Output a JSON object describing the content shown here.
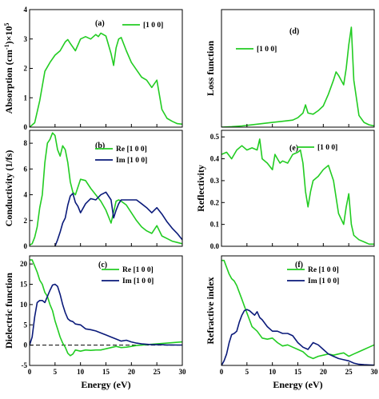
{
  "colors": {
    "green": "#22cc22",
    "navy": "#0a1a7a",
    "axis": "#000000"
  },
  "chart_data": [
    {
      "id": "a",
      "type": "line",
      "panel_label": "(a)",
      "ylabel_parts": [
        "Absorption (cm",
        "-1",
        ")×10",
        "5"
      ],
      "xlabel": "",
      "xlim": [
        0,
        30
      ],
      "ylim": [
        0,
        4
      ],
      "xticks": [
        0,
        5,
        10,
        15,
        20,
        25,
        30
      ],
      "xtick_labels": [],
      "yticks": [
        0,
        1,
        2,
        3,
        4
      ],
      "ytick_labels": [
        "0",
        "1",
        "2",
        "3",
        "4"
      ],
      "legend_placement": "top-right",
      "reference_line": null,
      "series": [
        {
          "name": "[1 0 0]",
          "color": "green",
          "x": [
            0,
            1,
            2,
            3,
            4,
            5,
            6,
            7,
            7.5,
            8,
            9,
            10,
            11,
            12,
            13,
            13.5,
            14,
            15,
            16,
            16.5,
            17,
            17.5,
            18,
            19,
            20,
            21,
            22,
            23,
            24,
            25,
            26,
            27,
            28,
            29,
            30
          ],
          "y": [
            0,
            0.15,
            0.9,
            1.9,
            2.2,
            2.45,
            2.6,
            2.9,
            2.98,
            2.85,
            2.6,
            3.0,
            3.08,
            3.0,
            3.15,
            3.08,
            3.2,
            3.1,
            2.5,
            2.1,
            2.7,
            3.0,
            3.05,
            2.6,
            2.2,
            1.95,
            1.7,
            1.6,
            1.35,
            1.6,
            0.6,
            0.3,
            0.2,
            0.12,
            0.1
          ]
        }
      ]
    },
    {
      "id": "b",
      "type": "line",
      "panel_label": "(b)",
      "ylabel_parts": [
        "Conductivity (1/fs)"
      ],
      "xlabel": "",
      "xlim": [
        0,
        30
      ],
      "ylim": [
        0,
        9
      ],
      "xticks": [
        0,
        5,
        10,
        15,
        20,
        25,
        30
      ],
      "xtick_labels": [],
      "yticks": [
        0,
        2,
        4,
        6,
        8
      ],
      "ytick_labels": [
        "0",
        "2",
        "4",
        "6",
        "8"
      ],
      "legend_placement": "top-right",
      "reference_line": null,
      "series": [
        {
          "name": "Re [1 0 0]",
          "color": "green",
          "x": [
            0,
            0.5,
            1,
            1.5,
            2,
            2.5,
            3,
            3.5,
            4,
            4.5,
            5,
            5.5,
            6,
            6.5,
            7,
            7.5,
            8,
            8.5,
            9,
            10,
            11,
            12,
            13,
            14,
            15,
            16,
            17,
            17.5,
            18,
            19,
            20,
            21,
            22,
            23,
            24,
            25,
            26,
            27,
            28,
            29,
            30
          ],
          "y": [
            0.1,
            0.2,
            0.7,
            1.5,
            3.0,
            4.0,
            6.5,
            8.0,
            8.3,
            8.8,
            8.6,
            7.5,
            7.0,
            7.8,
            7.5,
            6.5,
            5.0,
            4.2,
            4.0,
            5.2,
            5.1,
            4.5,
            4.0,
            3.5,
            2.8,
            1.8,
            3.5,
            3.6,
            3.5,
            3.2,
            2.6,
            2.0,
            1.5,
            1.2,
            1.0,
            1.6,
            0.8,
            0.6,
            0.4,
            0.3,
            0.2
          ]
        },
        {
          "name": "Im [1 0 0]",
          "color": "navy",
          "x": [
            5,
            5.5,
            6,
            6.5,
            7,
            7.5,
            8,
            8.5,
            9,
            9.5,
            10,
            11,
            12,
            13,
            14,
            15,
            16,
            16.5,
            17,
            17.5,
            18,
            19,
            20,
            21,
            22,
            23,
            24,
            25,
            26,
            27,
            28,
            29,
            30
          ],
          "y": [
            0,
            0.5,
            1.1,
            1.8,
            2.2,
            3.2,
            3.9,
            4.1,
            3.4,
            3.1,
            2.6,
            3.3,
            3.7,
            3.6,
            4.0,
            4.2,
            3.6,
            2.2,
            2.8,
            3.3,
            3.6,
            3.6,
            3.6,
            3.6,
            3.3,
            3.0,
            2.6,
            3.0,
            2.5,
            1.9,
            1.4,
            1.0,
            0.5
          ]
        }
      ]
    },
    {
      "id": "c",
      "type": "line",
      "panel_label": "(c)",
      "ylabel_parts": [
        "Dielectric function"
      ],
      "xlabel": "Energy (eV)",
      "xlim": [
        0,
        30
      ],
      "ylim": [
        -5,
        22
      ],
      "xticks": [
        0,
        5,
        10,
        15,
        20,
        25,
        30
      ],
      "xtick_labels": [
        "0",
        "5",
        "10",
        "15",
        "20",
        "25",
        "30"
      ],
      "yticks": [
        -5,
        0,
        5,
        10,
        15,
        20
      ],
      "ytick_labels": [
        "-5",
        "0",
        "5",
        "10",
        "15",
        "20"
      ],
      "legend_placement": "top-right",
      "reference_line": 0,
      "series": [
        {
          "name": "Re [1 0 0]",
          "color": "green",
          "x": [
            0,
            0.5,
            1,
            1.5,
            2,
            2.5,
            3,
            3.5,
            4,
            4.5,
            5,
            5.5,
            6,
            6.5,
            7,
            7.5,
            8,
            8.5,
            9,
            10,
            11,
            12,
            13,
            14,
            15,
            16,
            17,
            18,
            19,
            20,
            21,
            22,
            23,
            24,
            25,
            26,
            27,
            28,
            29,
            30
          ],
          "y": [
            21,
            21,
            19.5,
            18,
            16,
            15,
            13,
            12,
            10,
            8.5,
            6,
            4,
            2,
            0.5,
            -0.5,
            -2,
            -2.6,
            -2.2,
            -1.2,
            -1.5,
            -1.2,
            -1.3,
            -1.2,
            -1.2,
            -0.9,
            -0.6,
            -0.3,
            -0.6,
            -0.5,
            -0.3,
            -0.1,
            0,
            0.1,
            0.2,
            0.3,
            0.4,
            0.5,
            0.6,
            0.7,
            0.8
          ]
        },
        {
          "name": "Im [1 0 0]",
          "color": "navy",
          "x": [
            0,
            0.5,
            1,
            1.5,
            2,
            2.5,
            3,
            3.5,
            4,
            4.5,
            5,
            5.5,
            6,
            6.5,
            7,
            7.5,
            8,
            8.5,
            9,
            10,
            11,
            12,
            13,
            14,
            15,
            16,
            17,
            18,
            19,
            20,
            21,
            22,
            23,
            24,
            25,
            26,
            27,
            28,
            29,
            30
          ],
          "y": [
            0,
            2,
            7,
            10.5,
            11,
            11,
            10.5,
            12,
            13.5,
            14.8,
            15,
            14.5,
            12.5,
            10,
            8,
            6.5,
            6,
            5.8,
            5.2,
            5,
            4,
            3.8,
            3.5,
            3,
            2.5,
            2,
            1.5,
            1,
            1.2,
            0.8,
            0.5,
            0.3,
            0.2,
            0.1,
            0.1,
            0.1,
            0.05,
            0.05,
            0.03,
            0.02
          ]
        }
      ]
    },
    {
      "id": "d",
      "type": "line",
      "panel_label": "(d)",
      "ylabel_parts": [
        "Loss function"
      ],
      "xlabel": "",
      "xlim": [
        0,
        30
      ],
      "ylim": [
        0,
        5
      ],
      "xticks": [
        0,
        5,
        10,
        15,
        20,
        25,
        30
      ],
      "xtick_labels": [],
      "yticks": [],
      "ytick_labels": [],
      "legend_placement": "top-left",
      "reference_line": null,
      "series": [
        {
          "name": "[1 0 0]",
          "color": "green",
          "x": [
            0,
            2,
            4,
            6,
            8,
            10,
            12,
            14,
            15,
            16,
            16.5,
            17,
            18,
            19,
            20,
            21,
            22,
            22.5,
            23,
            24,
            24.5,
            25,
            25.5,
            26,
            27,
            28,
            29,
            30
          ],
          "y": [
            0,
            0.02,
            0.05,
            0.1,
            0.15,
            0.2,
            0.25,
            0.3,
            0.4,
            0.6,
            0.95,
            0.6,
            0.55,
            0.7,
            0.9,
            1.4,
            2.0,
            2.35,
            2.2,
            1.8,
            2.5,
            3.5,
            4.25,
            2.0,
            0.5,
            0.2,
            0.1,
            0.05
          ]
        }
      ]
    },
    {
      "id": "e",
      "type": "line",
      "panel_label": "(e)",
      "ylabel_parts": [
        "Reflectivity"
      ],
      "xlabel": "",
      "xlim": [
        0,
        30
      ],
      "ylim": [
        0,
        0.53
      ],
      "xticks": [
        0,
        5,
        10,
        15,
        20,
        25,
        30
      ],
      "xtick_labels": [],
      "yticks": [
        0.0,
        0.1,
        0.2,
        0.3,
        0.4,
        0.5
      ],
      "ytick_labels": [
        "0.0",
        "0.1",
        "0.2",
        "0.3",
        "0.4",
        "0.5"
      ],
      "legend_placement": "top-right",
      "reference_line": null,
      "series": [
        {
          "name": "[1 0 0]",
          "color": "green",
          "x": [
            0,
            1,
            2,
            3,
            4,
            5,
            6,
            7,
            7.5,
            8,
            9,
            10,
            10.5,
            11,
            11.5,
            12,
            13,
            14,
            15,
            15.5,
            16,
            16.5,
            17,
            17.5,
            18,
            19,
            20,
            21,
            22,
            23,
            24,
            24.5,
            25,
            25.5,
            26,
            27,
            28,
            29,
            30
          ],
          "y": [
            0.42,
            0.43,
            0.4,
            0.44,
            0.46,
            0.44,
            0.45,
            0.44,
            0.49,
            0.4,
            0.38,
            0.35,
            0.42,
            0.4,
            0.38,
            0.39,
            0.38,
            0.42,
            0.43,
            0.44,
            0.38,
            0.25,
            0.18,
            0.25,
            0.3,
            0.32,
            0.35,
            0.37,
            0.3,
            0.15,
            0.1,
            0.18,
            0.24,
            0.1,
            0.05,
            0.03,
            0.02,
            0.01,
            0.01
          ]
        }
      ]
    },
    {
      "id": "f",
      "type": "line",
      "panel_label": "(f)",
      "ylabel_parts": [
        "Refractive index"
      ],
      "xlabel": "Energy (eV)",
      "xlim": [
        0,
        30
      ],
      "ylim": [
        0,
        4.8
      ],
      "xticks": [
        0,
        5,
        10,
        15,
        20,
        25,
        30
      ],
      "xtick_labels": [
        "0",
        "5",
        "10",
        "15",
        "20",
        "25",
        "30"
      ],
      "yticks": [],
      "ytick_labels": [],
      "legend_placement": "top-right",
      "reference_line": null,
      "series": [
        {
          "name": "Re [1 0 0]",
          "color": "green",
          "x": [
            0,
            0.5,
            1,
            1.5,
            2,
            2.5,
            3,
            3.5,
            4,
            4.5,
            5,
            5.5,
            6,
            6.5,
            7,
            8,
            9,
            10,
            11,
            12,
            13,
            14,
            15,
            16,
            17,
            18,
            19,
            20,
            21,
            22,
            23,
            24,
            25,
            26,
            27,
            28,
            29,
            30
          ],
          "y": [
            4.6,
            4.6,
            4.3,
            4.0,
            3.8,
            3.7,
            3.5,
            3.2,
            2.9,
            2.6,
            2.3,
            2.0,
            1.7,
            1.6,
            1.5,
            1.2,
            1.15,
            1.2,
            1.0,
            0.85,
            0.9,
            0.8,
            0.7,
            0.6,
            0.4,
            0.3,
            0.4,
            0.45,
            0.5,
            0.45,
            0.5,
            0.55,
            0.4,
            0.5,
            0.6,
            0.7,
            0.8,
            0.9
          ]
        },
        {
          "name": "Im [1 0 0]",
          "color": "navy",
          "x": [
            0,
            0.5,
            1,
            1.5,
            2,
            2.5,
            3,
            3.5,
            4,
            4.5,
            5,
            5.5,
            6,
            6.5,
            7,
            7.5,
            8,
            9,
            10,
            11,
            12,
            13,
            14,
            15,
            16,
            17,
            18,
            19,
            20,
            21,
            22,
            23,
            24,
            25,
            26,
            27,
            28,
            29,
            30
          ],
          "y": [
            0,
            0.2,
            0.5,
            1.0,
            1.35,
            1.4,
            1.5,
            1.9,
            2.2,
            2.4,
            2.45,
            2.4,
            2.3,
            2.2,
            2.35,
            2.1,
            2.0,
            1.7,
            1.5,
            1.5,
            1.4,
            1.4,
            1.3,
            1.0,
            0.8,
            0.7,
            1.0,
            0.9,
            0.7,
            0.5,
            0.4,
            0.3,
            0.25,
            0.2,
            0.1,
            0.05,
            0.03,
            0.02,
            0.01
          ]
        }
      ]
    }
  ]
}
